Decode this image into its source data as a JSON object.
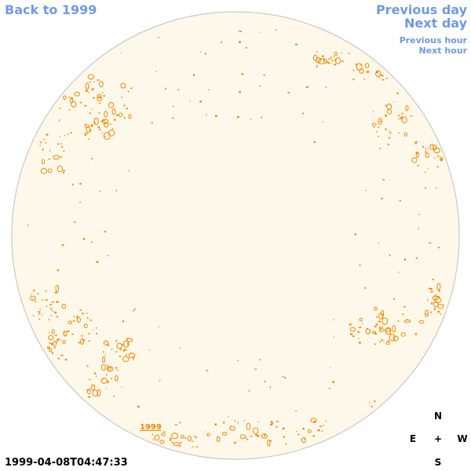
{
  "nav": {
    "back_label": "Back to 1999",
    "prev_day_label": "Previous day",
    "next_day_label": "Next day",
    "prev_hour_label": "Previous hour",
    "next_hour_label": "Next hour"
  },
  "timestamp": "1999-04-08T04:47:33",
  "compass": {
    "n": "N",
    "e": "E",
    "center": "+",
    "w": "W",
    "s": "S"
  },
  "disk": {
    "year_label": "1999",
    "fill_color": "#fef8ea",
    "border_color": "#bfbfbf",
    "feature_color": "#ee8800"
  },
  "colors": {
    "link": "#6f9ae0"
  }
}
